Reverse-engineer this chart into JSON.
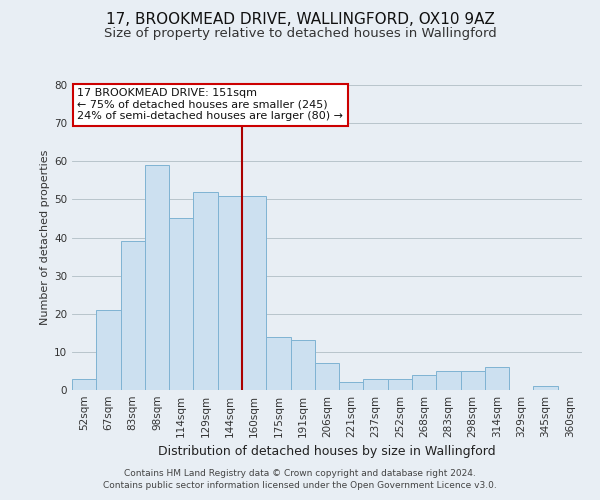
{
  "title": "17, BROOKMEAD DRIVE, WALLINGFORD, OX10 9AZ",
  "subtitle": "Size of property relative to detached houses in Wallingford",
  "xlabel": "Distribution of detached houses by size in Wallingford",
  "ylabel": "Number of detached properties",
  "categories": [
    "52sqm",
    "67sqm",
    "83sqm",
    "98sqm",
    "114sqm",
    "129sqm",
    "144sqm",
    "160sqm",
    "175sqm",
    "191sqm",
    "206sqm",
    "221sqm",
    "237sqm",
    "252sqm",
    "268sqm",
    "283sqm",
    "298sqm",
    "314sqm",
    "329sqm",
    "345sqm",
    "360sqm"
  ],
  "values": [
    3,
    21,
    39,
    59,
    45,
    52,
    51,
    51,
    14,
    13,
    7,
    2,
    3,
    3,
    4,
    5,
    5,
    6,
    0,
    1,
    0
  ],
  "bar_color": "#cce0f0",
  "bar_edge_color": "#7fb3d3",
  "vline_x_index": 6,
  "vline_color": "#aa0000",
  "annotation_text": "17 BROOKMEAD DRIVE: 151sqm\n← 75% of detached houses are smaller (245)\n24% of semi-detached houses are larger (80) →",
  "annotation_box_color": "#ffffff",
  "annotation_box_edge": "#cc0000",
  "ylim": [
    0,
    80
  ],
  "yticks": [
    0,
    10,
    20,
    30,
    40,
    50,
    60,
    70,
    80
  ],
  "footer1": "Contains HM Land Registry data © Crown copyright and database right 2024.",
  "footer2": "Contains public sector information licensed under the Open Government Licence v3.0.",
  "bg_color": "#e8eef4",
  "plot_bg_color": "#e8eef4",
  "title_fontsize": 11,
  "subtitle_fontsize": 9.5,
  "xlabel_fontsize": 9,
  "ylabel_fontsize": 8,
  "tick_fontsize": 7.5,
  "footer_fontsize": 6.5
}
